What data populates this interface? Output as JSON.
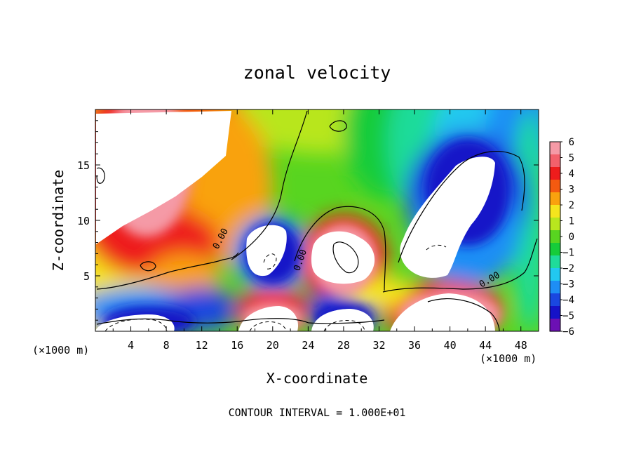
{
  "chart_data": {
    "type": "heatmap",
    "title": "zonal velocity",
    "xlabel": "X-coordinate",
    "ylabel": "Z-coordinate",
    "x_unit_left": "(×1000 m)",
    "x_unit_right": "(×1000 m)",
    "xlim": [
      0,
      50
    ],
    "ylim": [
      0,
      20
    ],
    "x_ticks": [
      4,
      8,
      12,
      16,
      20,
      24,
      28,
      32,
      36,
      40,
      44,
      48
    ],
    "y_ticks": [
      5,
      10,
      15
    ],
    "footer": "CONTOUR INTERVAL = 1.000E+01",
    "contour_label": "0.00",
    "colorbar": {
      "min": -6,
      "max": 6,
      "labels": [
        "6",
        "5",
        "4",
        "3",
        "2",
        "1",
        "0",
        "-1",
        "-2",
        "-3",
        "-4",
        "-5",
        "-6"
      ],
      "colors": [
        "#f59aa6",
        "#f3606b",
        "#ee1c1c",
        "#f45a10",
        "#f9a20e",
        "#f5e51d",
        "#b8e61e",
        "#58d520",
        "#16cc3a",
        "#1fdb9a",
        "#22c8f0",
        "#1e8ef5",
        "#1a47e0",
        "#1612c8",
        "#6c10b4"
      ]
    },
    "regions": [
      {
        "name": "strong positive upper-left",
        "sign": "positive",
        "center": [
          6.5,
          15
        ],
        "value": 8
      },
      {
        "name": "strong negative upper-right",
        "sign": "negative",
        "center": [
          42,
          12
        ],
        "value": -8
      },
      {
        "name": "positive cell",
        "sign": "positive",
        "center": [
          28,
          6.5
        ],
        "value": 7
      },
      {
        "name": "negative cell",
        "sign": "negative",
        "center": [
          20,
          7
        ],
        "value": -7
      },
      {
        "name": "negative bottom-left",
        "sign": "negative",
        "center": [
          6,
          0.7
        ],
        "value": -7
      },
      {
        "name": "positive bottom-center",
        "sign": "positive",
        "center": [
          20,
          1
        ],
        "value": 7
      },
      {
        "name": "negative bottom-center",
        "sign": "negative",
        "center": [
          28,
          1
        ],
        "value": -7
      },
      {
        "name": "positive bottom-right",
        "sign": "positive",
        "center": [
          40,
          1.5
        ],
        "value": 7
      }
    ]
  }
}
